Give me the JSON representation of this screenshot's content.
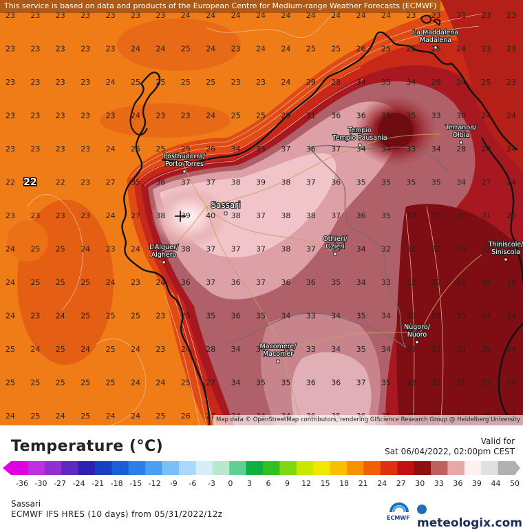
{
  "banner": "This service is based on data and products of the European Centre for Medium-range Weather Forecasts (ECMWF)",
  "attribution": "Map data © OpenStreetMap contributors, rendering GIScience Research Group @ Heidelberg University",
  "legend": {
    "title": "Temperature (°C)",
    "valid_label": "Valid for",
    "valid_date": "Sat 06/04/2022, 02:00pm CEST",
    "ticks": [
      "-36",
      "-30",
      "-27",
      "-24",
      "-21",
      "-18",
      "-15",
      "-12",
      "-9",
      "-6",
      "-3",
      "0",
      "3",
      "6",
      "9",
      "12",
      "15",
      "18",
      "21",
      "24",
      "27",
      "30",
      "33",
      "36",
      "39",
      "44",
      "50"
    ],
    "colors": [
      "#e000e0",
      "#c030e0",
      "#9030d0",
      "#6028c0",
      "#3020b0",
      "#1840c0",
      "#1860d8",
      "#2a80e8",
      "#4aa0f0",
      "#7ac0f8",
      "#a8d8fc",
      "#d8ecfa",
      "#b8e8d0",
      "#60d090",
      "#10b040",
      "#30c020",
      "#80d810",
      "#c8e800",
      "#f0e800",
      "#f8c000",
      "#f89000",
      "#f06000",
      "#e03010",
      "#c01010",
      "#901010",
      "#c06060",
      "#e8a8a8",
      "#fff0f0",
      "#e0e0e0",
      "#b0b0b0"
    ]
  },
  "footer": {
    "place": "Sassari",
    "model": "ECMWF IFS HRES (10 days) from 05/31/2022/12z",
    "ecmwf": "ECMWF",
    "brand": "meteologix.com"
  },
  "max_marker": "22",
  "cities": [
    {
      "name": "La Maddalena",
      "sub": "Madalena"
    },
    {
      "name": "Tempio",
      "sub": "Tempio Pausania"
    },
    {
      "name": "Terranoa/",
      "sub": "Olbia"
    },
    {
      "name": "Posthudorra/",
      "sub": "Porto Torres"
    },
    {
      "name": "Sassari",
      "sub": ""
    },
    {
      "name": "L'Alguer/",
      "sub": "Alghero"
    },
    {
      "name": "Othieri/",
      "sub": "Ozieri"
    },
    {
      "name": "Thiniscole/",
      "sub": "Siniscola"
    },
    {
      "name": "Nùgoro/",
      "sub": "Nuoro"
    },
    {
      "name": "Macomere/",
      "sub": "Macomer"
    }
  ],
  "grid": {
    "rows": [
      [
        "23",
        "23",
        "23",
        "23",
        "23",
        "23",
        "23",
        "24",
        "24",
        "24",
        "24",
        "24",
        "24",
        "24",
        "24",
        "24",
        "23",
        "23",
        "23",
        "23",
        "23"
      ],
      [
        "23",
        "23",
        "23",
        "23",
        "23",
        "24",
        "24",
        "25",
        "24",
        "23",
        "24",
        "24",
        "25",
        "25",
        "26",
        "25",
        "26",
        "25",
        "24",
        "23",
        "23"
      ],
      [
        "23",
        "23",
        "23",
        "23",
        "24",
        "25",
        "25",
        "25",
        "25",
        "23",
        "23",
        "24",
        "29",
        "28",
        "34",
        "35",
        "34",
        "29",
        "24",
        "25",
        "23"
      ],
      [
        "23",
        "23",
        "23",
        "23",
        "23",
        "24",
        "23",
        "23",
        "24",
        "25",
        "25",
        "29",
        "31",
        "36",
        "36",
        "35",
        "35",
        "33",
        "30",
        "24",
        "24"
      ],
      [
        "23",
        "23",
        "23",
        "23",
        "24",
        "25",
        "25",
        "25",
        "26",
        "34",
        "35",
        "37",
        "36",
        "37",
        "34",
        "34",
        "33",
        "34",
        "28",
        "24",
        "24"
      ],
      [
        "22",
        "22",
        "22",
        "23",
        "27",
        "35",
        "36",
        "37",
        "37",
        "38",
        "39",
        "38",
        "37",
        "36",
        "35",
        "35",
        "35",
        "35",
        "34",
        "27",
        "24"
      ],
      [
        "23",
        "23",
        "23",
        "23",
        "24",
        "27",
        "38",
        "39",
        "40",
        "38",
        "37",
        "38",
        "38",
        "37",
        "36",
        "35",
        "33",
        "33",
        "33",
        "31",
        "26"
      ],
      [
        "24",
        "25",
        "25",
        "24",
        "23",
        "24",
        "37",
        "38",
        "37",
        "37",
        "37",
        "38",
        "37",
        "35",
        "34",
        "32",
        "32",
        "32",
        "33",
        "32",
        "31"
      ],
      [
        "24",
        "25",
        "25",
        "25",
        "24",
        "23",
        "24",
        "36",
        "37",
        "36",
        "37",
        "36",
        "36",
        "35",
        "34",
        "33",
        "33",
        "32",
        "32",
        "32",
        "30"
      ],
      [
        "24",
        "23",
        "24",
        "25",
        "25",
        "25",
        "23",
        "25",
        "35",
        "36",
        "35",
        "34",
        "33",
        "34",
        "35",
        "34",
        "33",
        "32",
        "30",
        "24",
        "24"
      ],
      [
        "25",
        "24",
        "25",
        "24",
        "25",
        "24",
        "23",
        "24",
        "28",
        "34",
        "34",
        "34",
        "33",
        "34",
        "35",
        "34",
        "33",
        "32",
        "30",
        "25",
        "24"
      ],
      [
        "25",
        "25",
        "25",
        "25",
        "25",
        "24",
        "24",
        "25",
        "27",
        "34",
        "35",
        "35",
        "36",
        "36",
        "37",
        "35",
        "33",
        "32",
        "31",
        "25",
        "24"
      ],
      [
        "24",
        "25",
        "24",
        "25",
        "24",
        "24",
        "25",
        "26",
        "27",
        "34",
        "34",
        "34",
        "36",
        "35",
        "36",
        "35",
        "33",
        "32",
        "33",
        "25",
        "24"
      ]
    ]
  }
}
